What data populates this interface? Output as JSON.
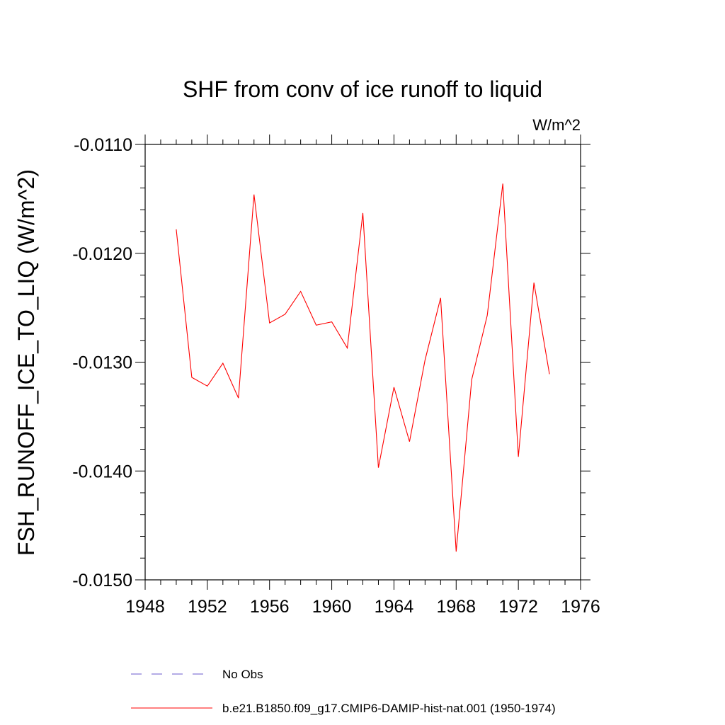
{
  "chart_data": {
    "type": "line",
    "title": "SHF from conv of ice runoff to liquid",
    "units_label": "W/m^2",
    "xlabel": "",
    "ylabel": "FSH_RUNOFF_ICE_TO_LIQ  (W/m^2)",
    "xlim": [
      1948,
      1976
    ],
    "ylim": [
      -0.015,
      -0.011
    ],
    "xticks": [
      1948,
      1952,
      1956,
      1960,
      1964,
      1968,
      1972,
      1976
    ],
    "xtick_labels": [
      "1948",
      "1952",
      "1956",
      "1960",
      "1964",
      "1968",
      "1972",
      "1976"
    ],
    "yticks": [
      -0.011,
      -0.012,
      -0.013,
      -0.014,
      -0.015
    ],
    "ytick_labels": [
      "-0.0110",
      "-0.0120",
      "-0.0130",
      "-0.0140",
      "-0.0150"
    ],
    "grid": false,
    "legend_position": "bottom",
    "series": [
      {
        "name": "b.e21.B1850.f09_g17.CMIP6-DAMIP-hist-nat.001 (1950-1974)",
        "color": "#ff0000",
        "style": "solid",
        "x": [
          1950,
          1951,
          1952,
          1953,
          1954,
          1955,
          1956,
          1957,
          1958,
          1959,
          1960,
          1961,
          1962,
          1963,
          1964,
          1965,
          1966,
          1967,
          1968,
          1969,
          1970,
          1971,
          1972,
          1973,
          1974
        ],
        "y": [
          -0.01178,
          -0.01314,
          -0.01322,
          -0.01301,
          -0.01333,
          -0.01146,
          -0.01264,
          -0.01256,
          -0.01235,
          -0.01266,
          -0.01263,
          -0.01287,
          -0.01163,
          -0.01397,
          -0.01323,
          -0.01373,
          -0.01298,
          -0.01241,
          -0.01474,
          -0.01316,
          -0.01257,
          -0.01136,
          -0.01387,
          -0.01227,
          -0.01311
        ]
      },
      {
        "name": "No Obs",
        "color": "#6a5acd",
        "style": "dashed",
        "x": [],
        "y": []
      }
    ]
  }
}
